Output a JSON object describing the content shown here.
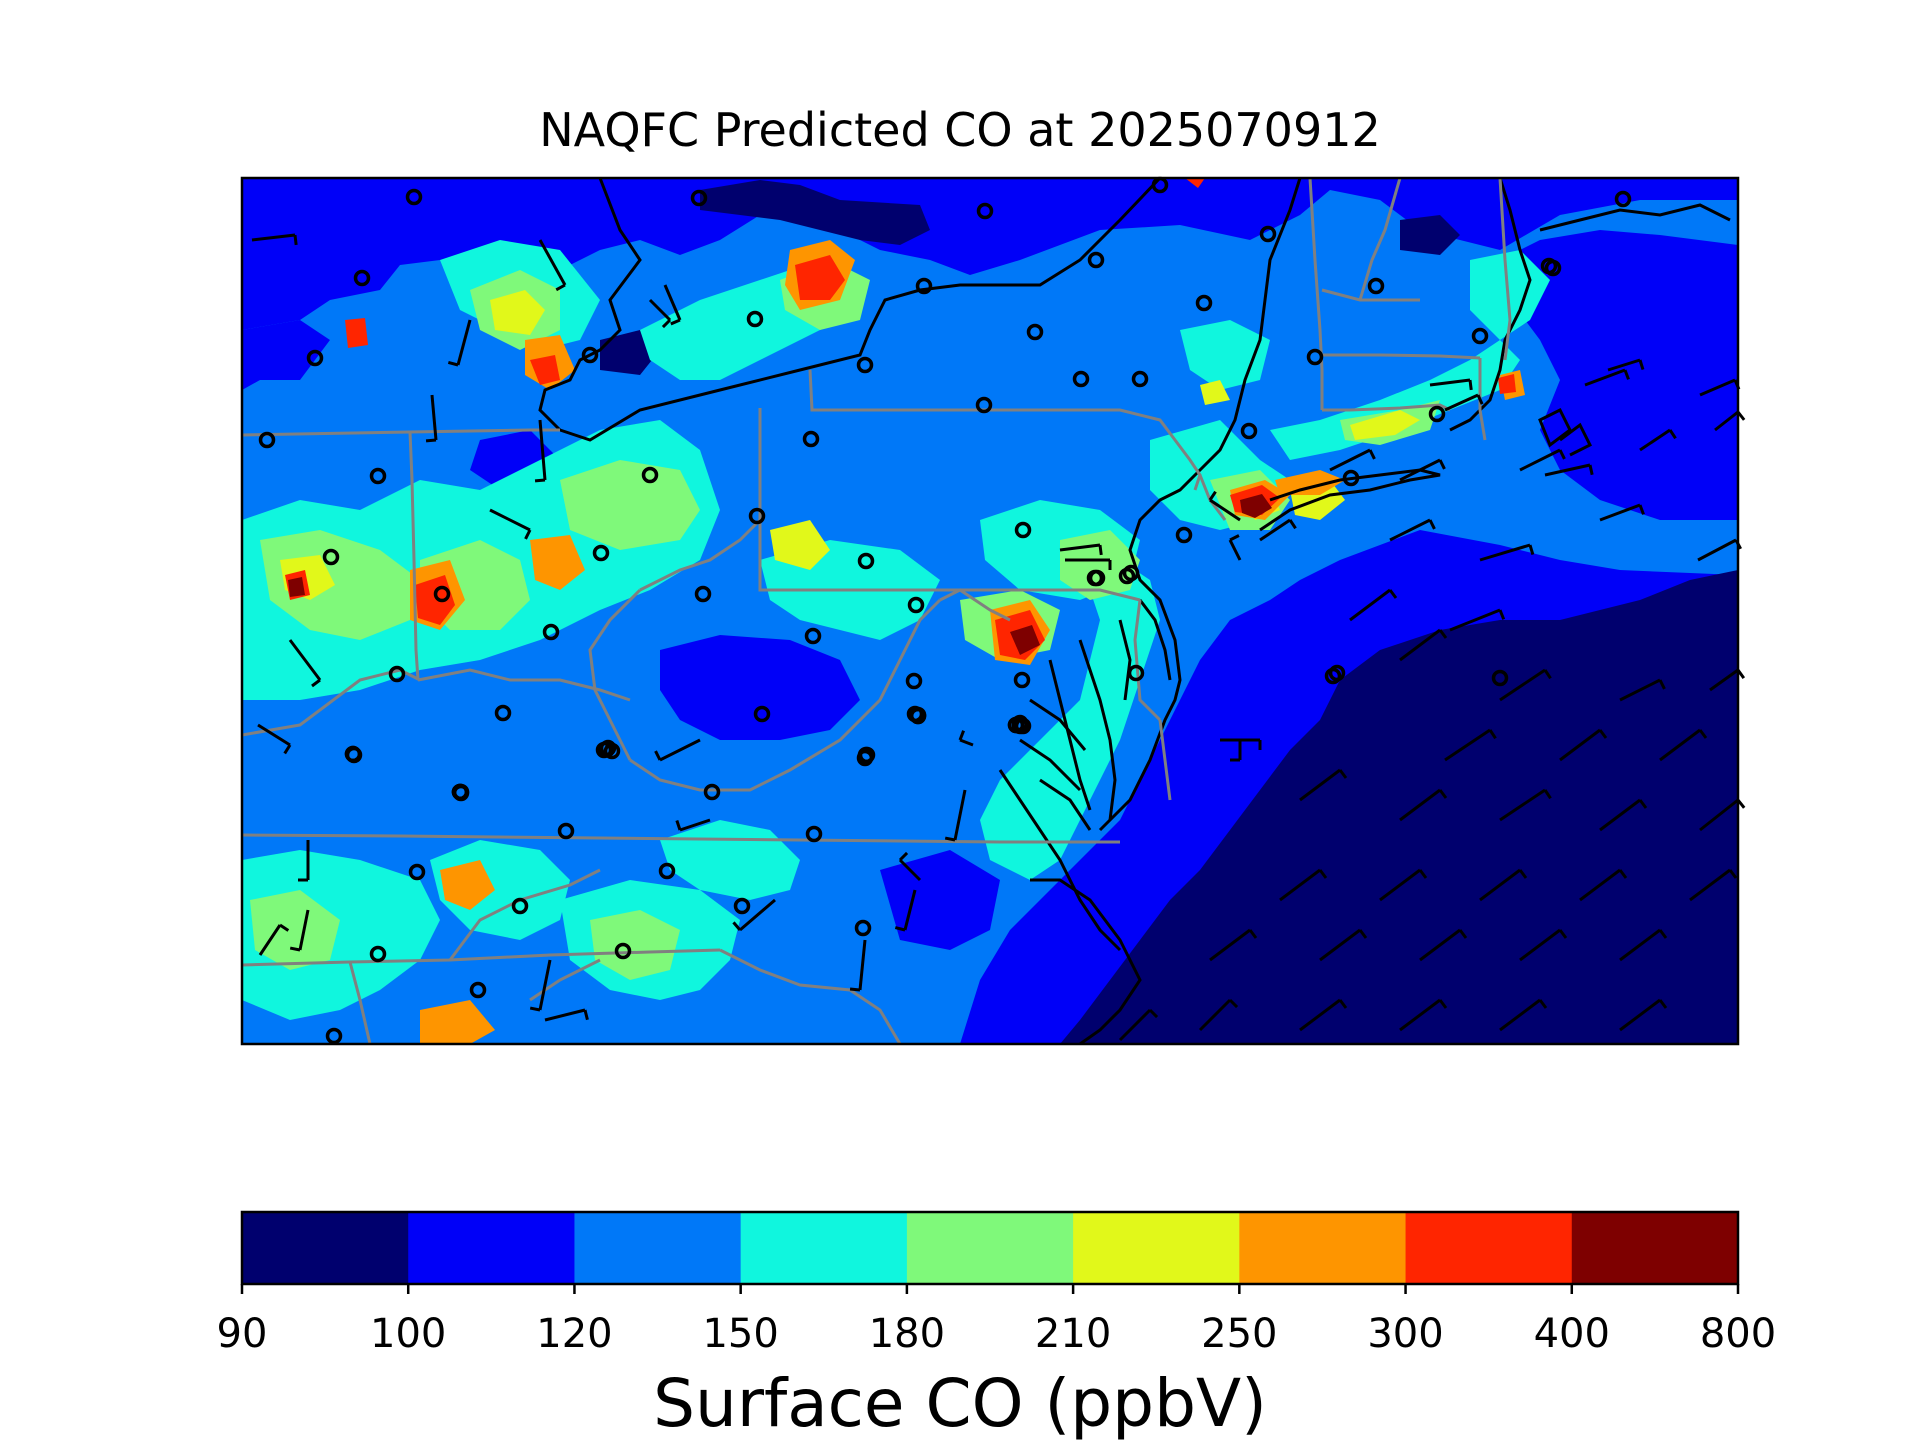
{
  "title": "NAQFC Predicted CO at 2025070912",
  "colorbar": {
    "label": "Surface CO (ppbV)",
    "ticks": [
      "90",
      "100",
      "120",
      "150",
      "180",
      "210",
      "250",
      "300",
      "400",
      "800"
    ],
    "colors": [
      "#00006e",
      "#0000f8",
      "#0078f8",
      "#10f6de",
      "#7ff97a",
      "#e1f81a",
      "#fe9500",
      "#ff2500",
      "#7e0000"
    ]
  },
  "map": {
    "background_level_color": "#0078f8",
    "land_boundary_color": "#000000",
    "state_boundary_color": "#808080",
    "site_marker": "open-circle",
    "wind_symbol": "wind-barb"
  }
}
